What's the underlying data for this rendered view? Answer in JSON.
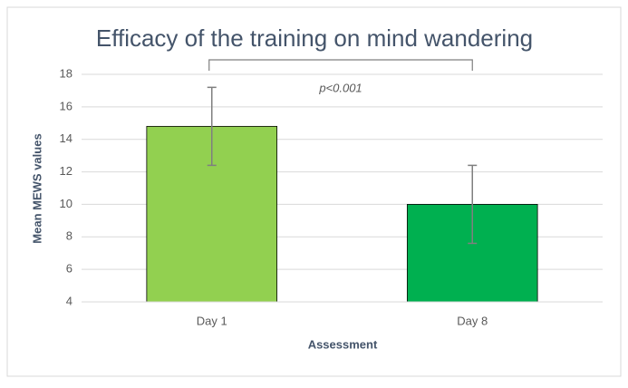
{
  "chart_data": {
    "type": "bar",
    "title": "Efficacy of the training on mind wandering",
    "x_label": "Assessment",
    "y_label": "Mean MEWS values",
    "categories": [
      "Day 1",
      "Day 8"
    ],
    "values": [
      14.8,
      10.0
    ],
    "errors": [
      2.4,
      2.4
    ],
    "colors": [
      "#92d050",
      "#00b050"
    ],
    "annotation": "p<0.001",
    "ylim": [
      4,
      18
    ],
    "yticks": [
      4,
      6,
      8,
      10,
      12,
      14,
      16,
      18
    ],
    "grid": true
  }
}
